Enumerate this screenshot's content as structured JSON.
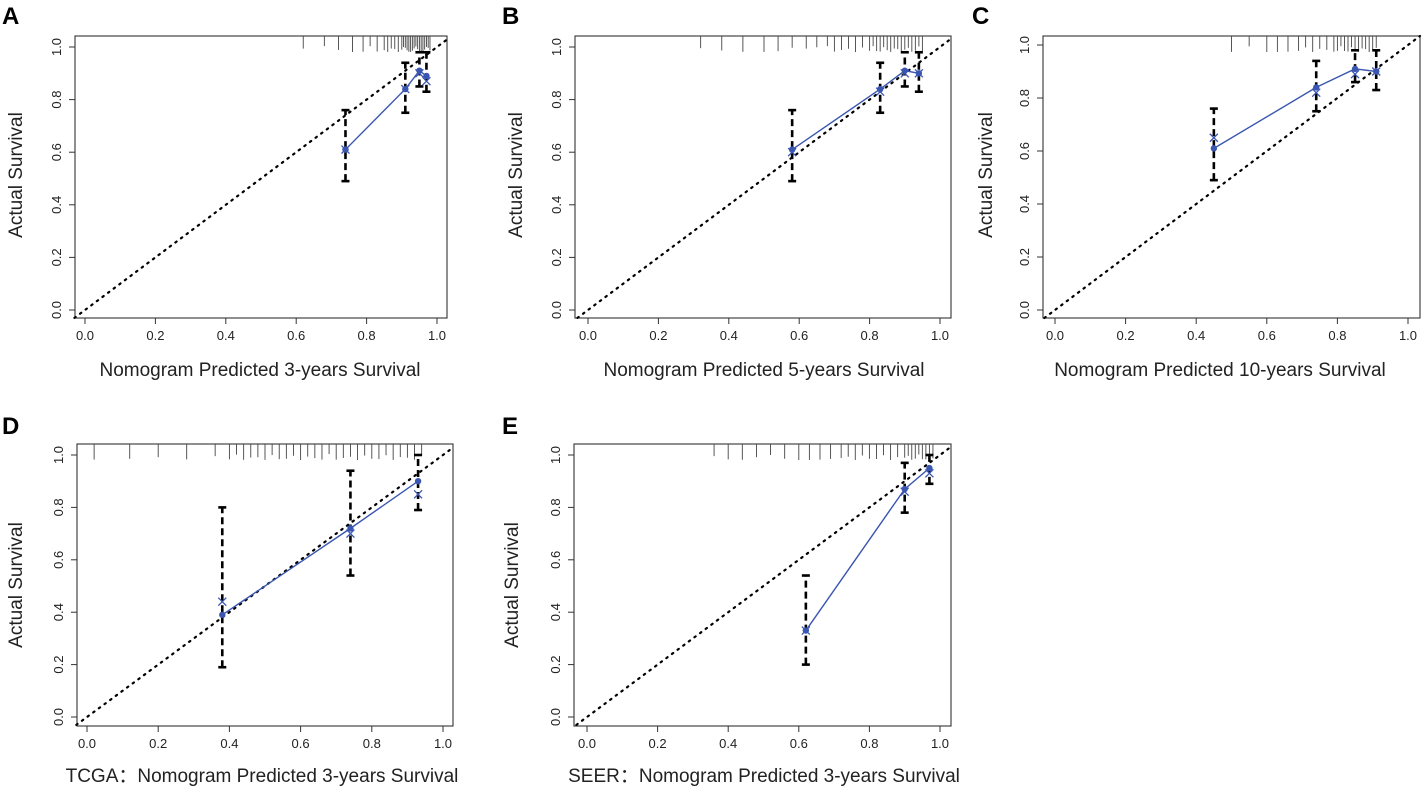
{
  "figure": {
    "series_colors": {
      "predicted_line": "#3a56b0",
      "errorbar": "#000000",
      "ideal_line": "#000000"
    }
  },
  "chart_data": [
    {
      "panel": "A",
      "type": "line",
      "xlabel": "Nomogram Predicted 3-years Survival",
      "ylabel": "Actual Survival",
      "xlim": [
        0,
        1
      ],
      "ylim": [
        0,
        1
      ],
      "xticks": [
        "0.0",
        "0.2",
        "0.4",
        "0.6",
        "0.8",
        "1.0"
      ],
      "yticks": [
        "0.0",
        "0.2",
        "0.4",
        "0.6",
        "0.8",
        "1.0"
      ],
      "points": [
        {
          "x": 0.74,
          "y": 0.61,
          "lo": 0.49,
          "hi": 0.76,
          "xcor": 0.61
        },
        {
          "x": 0.91,
          "y": 0.84,
          "lo": 0.75,
          "hi": 0.94,
          "xcor": 0.84
        },
        {
          "x": 0.95,
          "y": 0.91,
          "lo": 0.85,
          "hi": 0.98,
          "xcor": 0.9
        },
        {
          "x": 0.97,
          "y": 0.89,
          "lo": 0.83,
          "hi": 0.98,
          "xcor": 0.87
        }
      ],
      "rug": [
        0.62,
        0.68,
        0.72,
        0.76,
        0.79,
        0.81,
        0.83,
        0.85,
        0.86,
        0.87,
        0.88,
        0.89,
        0.9,
        0.905,
        0.91,
        0.915,
        0.92,
        0.925,
        0.93,
        0.935,
        0.94,
        0.945,
        0.95,
        0.955,
        0.96,
        0.965,
        0.97,
        0.975,
        0.98
      ]
    },
    {
      "panel": "B",
      "type": "line",
      "xlabel": "Nomogram Predicted 5-years Survival",
      "ylabel": "Actual Survival",
      "xlim": [
        0,
        1
      ],
      "ylim": [
        0,
        1
      ],
      "xticks": [
        "0.0",
        "0.2",
        "0.4",
        "0.6",
        "0.8",
        "1.0"
      ],
      "yticks": [
        "0.0",
        "0.2",
        "0.4",
        "0.6",
        "0.8",
        "1.0"
      ],
      "points": [
        {
          "x": 0.58,
          "y": 0.61,
          "lo": 0.49,
          "hi": 0.76,
          "xcor": 0.6
        },
        {
          "x": 0.83,
          "y": 0.84,
          "lo": 0.75,
          "hi": 0.94,
          "xcor": 0.83
        },
        {
          "x": 0.9,
          "y": 0.91,
          "lo": 0.85,
          "hi": 0.98,
          "xcor": 0.9
        },
        {
          "x": 0.94,
          "y": 0.9,
          "lo": 0.83,
          "hi": 0.98,
          "xcor": 0.9
        }
      ],
      "rug": [
        0.32,
        0.38,
        0.44,
        0.5,
        0.54,
        0.58,
        0.62,
        0.65,
        0.68,
        0.7,
        0.72,
        0.74,
        0.76,
        0.78,
        0.8,
        0.81,
        0.82,
        0.83,
        0.84,
        0.85,
        0.86,
        0.87,
        0.88,
        0.89,
        0.9,
        0.91,
        0.92,
        0.93,
        0.94,
        0.95
      ]
    },
    {
      "panel": "C",
      "type": "line",
      "xlabel": "Nomogram Predicted 10-years Survival",
      "ylabel": "Actual Survival",
      "xlim": [
        0,
        1
      ],
      "ylim": [
        0,
        1
      ],
      "xticks": [
        "0.0",
        "0.2",
        "0.4",
        "0.6",
        "0.8",
        "1.0"
      ],
      "yticks": [
        "0.0",
        "0.2",
        "0.4",
        "0.6",
        "0.8",
        "1.0"
      ],
      "points": [
        {
          "x": 0.45,
          "y": 0.61,
          "lo": 0.49,
          "hi": 0.76,
          "xcor": 0.65
        },
        {
          "x": 0.74,
          "y": 0.84,
          "lo": 0.75,
          "hi": 0.94,
          "xcor": 0.82
        },
        {
          "x": 0.85,
          "y": 0.91,
          "lo": 0.86,
          "hi": 0.98,
          "xcor": 0.89
        },
        {
          "x": 0.91,
          "y": 0.9,
          "lo": 0.83,
          "hi": 0.98,
          "xcor": 0.9
        }
      ],
      "rug": [
        0.5,
        0.55,
        0.6,
        0.63,
        0.66,
        0.69,
        0.71,
        0.73,
        0.75,
        0.77,
        0.79,
        0.8,
        0.81,
        0.82,
        0.83,
        0.84,
        0.85,
        0.86,
        0.87,
        0.88,
        0.89,
        0.9,
        0.91
      ]
    },
    {
      "panel": "D",
      "type": "line",
      "xlabel": "TCGA：Nomogram Predicted 3-years Survival",
      "ylabel": "Actual Survival",
      "xlim": [
        0,
        1
      ],
      "ylim": [
        0,
        1
      ],
      "xticks": [
        "0.0",
        "0.2",
        "0.4",
        "0.6",
        "0.8",
        "1.0"
      ],
      "yticks": [
        "0.0",
        "0.2",
        "0.4",
        "0.6",
        "0.8",
        "1.0"
      ],
      "points": [
        {
          "x": 0.38,
          "y": 0.39,
          "lo": 0.19,
          "hi": 0.8,
          "xcor": 0.44
        },
        {
          "x": 0.74,
          "y": 0.72,
          "lo": 0.54,
          "hi": 0.94,
          "xcor": 0.7
        },
        {
          "x": 0.93,
          "y": 0.9,
          "lo": 0.79,
          "hi": 1.0,
          "xcor": 0.85
        }
      ],
      "rug": [
        0.02,
        0.12,
        0.2,
        0.28,
        0.36,
        0.4,
        0.42,
        0.44,
        0.46,
        0.48,
        0.5,
        0.52,
        0.54,
        0.56,
        0.58,
        0.6,
        0.62,
        0.64,
        0.66,
        0.68,
        0.7,
        0.72,
        0.74,
        0.76,
        0.78,
        0.8,
        0.82,
        0.84,
        0.86,
        0.88,
        0.9,
        0.92,
        0.94
      ]
    },
    {
      "panel": "E",
      "type": "line",
      "xlabel": "SEER：Nomogram Predicted 3-years Survival",
      "ylabel": "Actual Survival",
      "xlim": [
        0,
        1
      ],
      "ylim": [
        0,
        1
      ],
      "xticks": [
        "0.0",
        "0.2",
        "0.4",
        "0.6",
        "0.8",
        "1.0"
      ],
      "yticks": [
        "0.0",
        "0.2",
        "0.4",
        "0.6",
        "0.8",
        "1.0"
      ],
      "points": [
        {
          "x": 0.62,
          "y": 0.33,
          "lo": 0.2,
          "hi": 0.54,
          "xcor": 0.33
        },
        {
          "x": 0.9,
          "y": 0.87,
          "lo": 0.78,
          "hi": 0.97,
          "xcor": 0.86
        },
        {
          "x": 0.97,
          "y": 0.95,
          "lo": 0.89,
          "hi": 1.0,
          "xcor": 0.93
        }
      ],
      "rug": [
        0.36,
        0.4,
        0.44,
        0.48,
        0.52,
        0.56,
        0.6,
        0.63,
        0.66,
        0.69,
        0.72,
        0.74,
        0.76,
        0.78,
        0.8,
        0.82,
        0.84,
        0.86,
        0.88,
        0.9,
        0.91,
        0.92,
        0.93,
        0.94,
        0.95,
        0.96,
        0.97,
        0.98
      ]
    }
  ]
}
